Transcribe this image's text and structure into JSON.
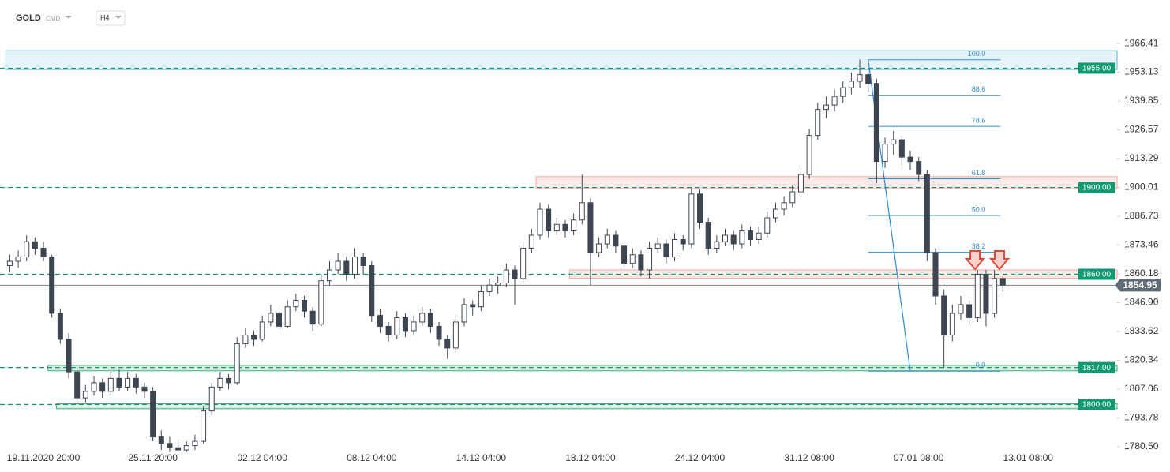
{
  "header": {
    "symbol": "GOLD",
    "market": "CMD",
    "interval": "H4"
  },
  "chart_data": {
    "type": "candlestick",
    "categories": [
      null,
      null,
      null,
      null,
      "19.11.2020 20:00",
      null,
      null,
      null,
      null,
      null,
      null,
      null,
      null,
      null,
      null,
      null,
      null,
      "25.11 20:00",
      null,
      null,
      null,
      null,
      null,
      null,
      null,
      null,
      null,
      null,
      null,
      null,
      "02.12 04:00",
      null,
      null,
      null,
      null,
      null,
      null,
      null,
      null,
      null,
      null,
      null,
      null,
      "08.12 04:00",
      null,
      null,
      null,
      null,
      null,
      null,
      null,
      null,
      null,
      null,
      null,
      null,
      "14.12 04:00",
      null,
      null,
      null,
      null,
      null,
      null,
      null,
      null,
      null,
      null,
      null,
      null,
      "18.12 04:00",
      null,
      null,
      null,
      null,
      null,
      null,
      null,
      null,
      null,
      null,
      null,
      null,
      "24.12 04:00",
      null,
      null,
      null,
      null,
      null,
      null,
      null,
      null,
      null,
      null,
      null,
      null,
      "31.12 08:00",
      null,
      null,
      null,
      null,
      null,
      null,
      null,
      null,
      null,
      null,
      null,
      null,
      "07.01 08:00",
      null,
      null,
      null,
      null,
      null,
      null,
      null,
      null,
      null,
      null,
      null,
      null,
      "13.01 08:00"
    ],
    "ohlc": [
      [
        1864,
        1869,
        1861,
        1866
      ],
      [
        1866,
        1871,
        1863,
        1868
      ],
      [
        1868,
        1878,
        1866,
        1875
      ],
      [
        1875,
        1877,
        1869,
        1872
      ],
      [
        1872,
        1875,
        1866,
        1868
      ],
      [
        1868,
        1869,
        1840,
        1842
      ],
      [
        1842,
        1844,
        1828,
        1830
      ],
      [
        1830,
        1833,
        1812,
        1815
      ],
      [
        1815,
        1817,
        1801,
        1803
      ],
      [
        1803,
        1809,
        1801,
        1806
      ],
      [
        1806,
        1813,
        1804,
        1810
      ],
      [
        1810,
        1812,
        1803,
        1806
      ],
      [
        1806,
        1815,
        1804,
        1812
      ],
      [
        1812,
        1816,
        1806,
        1808
      ],
      [
        1808,
        1815,
        1806,
        1812
      ],
      [
        1812,
        1814,
        1805,
        1808
      ],
      [
        1808,
        1810,
        1803,
        1806
      ],
      [
        1806,
        1808,
        1783,
        1785
      ],
      [
        1785,
        1788,
        1779,
        1782
      ],
      [
        1782,
        1785,
        1778,
        1780
      ],
      [
        1780,
        1784,
        1778,
        1779
      ],
      [
        1779,
        1783,
        1778,
        1781
      ],
      [
        1781,
        1786,
        1779,
        1783
      ],
      [
        1783,
        1799,
        1782,
        1797
      ],
      [
        1797,
        1810,
        1795,
        1808
      ],
      [
        1808,
        1815,
        1806,
        1812
      ],
      [
        1812,
        1814,
        1807,
        1810
      ],
      [
        1810,
        1831,
        1809,
        1828
      ],
      [
        1828,
        1835,
        1826,
        1832
      ],
      [
        1832,
        1834,
        1827,
        1830
      ],
      [
        1830,
        1841,
        1829,
        1838
      ],
      [
        1838,
        1846,
        1836,
        1842
      ],
      [
        1842,
        1844,
        1833,
        1836
      ],
      [
        1836,
        1848,
        1835,
        1845
      ],
      [
        1845,
        1851,
        1843,
        1848
      ],
      [
        1848,
        1850,
        1840,
        1843
      ],
      [
        1843,
        1845,
        1834,
        1837
      ],
      [
        1837,
        1860,
        1836,
        1857
      ],
      [
        1857,
        1866,
        1855,
        1862
      ],
      [
        1862,
        1870,
        1860,
        1866
      ],
      [
        1866,
        1868,
        1857,
        1860
      ],
      [
        1860,
        1872,
        1858,
        1868
      ],
      [
        1868,
        1870,
        1860,
        1864
      ],
      [
        1864,
        1866,
        1838,
        1841
      ],
      [
        1841,
        1844,
        1833,
        1836
      ],
      [
        1836,
        1838,
        1829,
        1832
      ],
      [
        1832,
        1843,
        1830,
        1840
      ],
      [
        1840,
        1842,
        1831,
        1834
      ],
      [
        1834,
        1841,
        1832,
        1838
      ],
      [
        1838,
        1845,
        1836,
        1842
      ],
      [
        1842,
        1844,
        1833,
        1836
      ],
      [
        1836,
        1838,
        1827,
        1830
      ],
      [
        1830,
        1832,
        1821,
        1826
      ],
      [
        1826,
        1841,
        1824,
        1838
      ],
      [
        1838,
        1849,
        1836,
        1846
      ],
      [
        1846,
        1848,
        1841,
        1845
      ],
      [
        1845,
        1855,
        1843,
        1852
      ],
      [
        1852,
        1858,
        1850,
        1855
      ],
      [
        1855,
        1859,
        1851,
        1856
      ],
      [
        1856,
        1865,
        1854,
        1862
      ],
      [
        1862,
        1864,
        1846,
        1858
      ],
      [
        1858,
        1875,
        1856,
        1872
      ],
      [
        1872,
        1881,
        1870,
        1878
      ],
      [
        1878,
        1893,
        1876,
        1890
      ],
      [
        1890,
        1892,
        1877,
        1880
      ],
      [
        1880,
        1886,
        1878,
        1883
      ],
      [
        1883,
        1885,
        1877,
        1880
      ],
      [
        1880,
        1888,
        1878,
        1885
      ],
      [
        1885,
        1906,
        1883,
        1893
      ],
      [
        1893,
        1895,
        1855,
        1870
      ],
      [
        1870,
        1877,
        1868,
        1874
      ],
      [
        1874,
        1881,
        1872,
        1878
      ],
      [
        1878,
        1880,
        1870,
        1873
      ],
      [
        1873,
        1875,
        1862,
        1865
      ],
      [
        1865,
        1872,
        1863,
        1869
      ],
      [
        1869,
        1871,
        1859,
        1862
      ],
      [
        1862,
        1875,
        1858,
        1872
      ],
      [
        1872,
        1877,
        1870,
        1874
      ],
      [
        1874,
        1876,
        1865,
        1868
      ],
      [
        1868,
        1879,
        1866,
        1876
      ],
      [
        1876,
        1878,
        1871,
        1874
      ],
      [
        1874,
        1900,
        1872,
        1897
      ],
      [
        1897,
        1899,
        1881,
        1884
      ],
      [
        1884,
        1886,
        1869,
        1872
      ],
      [
        1872,
        1878,
        1870,
        1875
      ],
      [
        1875,
        1881,
        1873,
        1878
      ],
      [
        1878,
        1880,
        1871,
        1874
      ],
      [
        1874,
        1883,
        1872,
        1880
      ],
      [
        1880,
        1882,
        1873,
        1876
      ],
      [
        1876,
        1882,
        1874,
        1879
      ],
      [
        1879,
        1889,
        1877,
        1886
      ],
      [
        1886,
        1893,
        1884,
        1890
      ],
      [
        1890,
        1896,
        1887,
        1893
      ],
      [
        1893,
        1901,
        1891,
        1898
      ],
      [
        1898,
        1909,
        1896,
        1906
      ],
      [
        1906,
        1927,
        1904,
        1924
      ],
      [
        1924,
        1939,
        1922,
        1936
      ],
      [
        1936,
        1942,
        1932,
        1938
      ],
      [
        1938,
        1945,
        1935,
        1942
      ],
      [
        1942,
        1949,
        1939,
        1946
      ],
      [
        1946,
        1953,
        1943,
        1949
      ],
      [
        1949,
        1959,
        1946,
        1952
      ],
      [
        1952,
        1955,
        1944,
        1948
      ],
      [
        1948,
        1950,
        1902,
        1912
      ],
      [
        1912,
        1923,
        1909,
        1920
      ],
      [
        1920,
        1926,
        1915,
        1922
      ],
      [
        1922,
        1924,
        1910,
        1914
      ],
      [
        1914,
        1917,
        1908,
        1912
      ],
      [
        1912,
        1914,
        1903,
        1906
      ],
      [
        1906,
        1908,
        1866,
        1870
      ],
      [
        1870,
        1872,
        1846,
        1850
      ],
      [
        1850,
        1853,
        1817,
        1832
      ],
      [
        1832,
        1846,
        1829,
        1842
      ],
      [
        1842,
        1850,
        1839,
        1846
      ],
      [
        1846,
        1848,
        1836,
        1840
      ],
      [
        1840,
        1862,
        1838,
        1860
      ],
      [
        1860,
        1862,
        1836,
        1842
      ],
      [
        1842,
        1862,
        1840,
        1858
      ],
      [
        1858,
        1859,
        1852,
        1855
      ],
      null,
      null,
      null
    ],
    "up_color": "#ffffff",
    "down_color": "#3d4650",
    "outline_color": "#3d4650",
    "ylim": [
      1777.2,
      1971.9
    ],
    "yticks": [
      1966.41,
      1953.13,
      1939.85,
      1926.57,
      1913.29,
      1900.01,
      1886.73,
      1873.46,
      1860.18,
      {
        "value": 1846.9,
        "label": "1846.90"
      },
      1833.62,
      1820.34,
      1807.06,
      1793.78,
      {
        "value": 1780.5,
        "label": "1780.50"
      }
    ],
    "levels": [
      {
        "value": 1955,
        "label": "1955.00"
      },
      {
        "value": 1900,
        "label": "1900.00"
      },
      {
        "value": 1860,
        "label": "1860.00"
      },
      {
        "value": 1817,
        "label": "1817.00"
      },
      {
        "value": 1800,
        "label": "1800.00"
      }
    ],
    "level_color": "#119a72",
    "last_price": 1854.95,
    "last_price_color": "#5f6b76",
    "zones": [
      {
        "from": 1954.4,
        "to": 1963.1,
        "x_start": 0,
        "fill": "#e6f4fa",
        "stroke": "#5bb5d6"
      },
      {
        "from": 1899.5,
        "to": 1905,
        "x_start": 63,
        "fill": "#fde9e7",
        "stroke": "#f0aaa3"
      },
      {
        "from": 1858.2,
        "to": 1862,
        "x_start": 67,
        "fill": "#fde9e7",
        "stroke": "#f0aaa3"
      },
      {
        "from": 1815.5,
        "to": 1818,
        "x_start": 5,
        "fill": "#d5f0e2",
        "stroke": "#3bb27b"
      },
      {
        "from": 1798,
        "to": 1800.3,
        "x_start": 6,
        "fill": "#d5f0e2",
        "stroke": "#3bb27b"
      }
    ],
    "fibonacci": {
      "high": 1958.9,
      "low": 1815.3,
      "start_index": 102,
      "low_index": 107,
      "end_index": 118,
      "color": "#2f8bd6",
      "levels": [
        {
          "value": 100,
          "label": "100.0"
        },
        88.6,
        78.6,
        61.8,
        {
          "value": 50,
          "label": "50.0"
        },
        38.2,
        {
          "value": 0,
          "label": "0.0"
        }
      ]
    }
  }
}
